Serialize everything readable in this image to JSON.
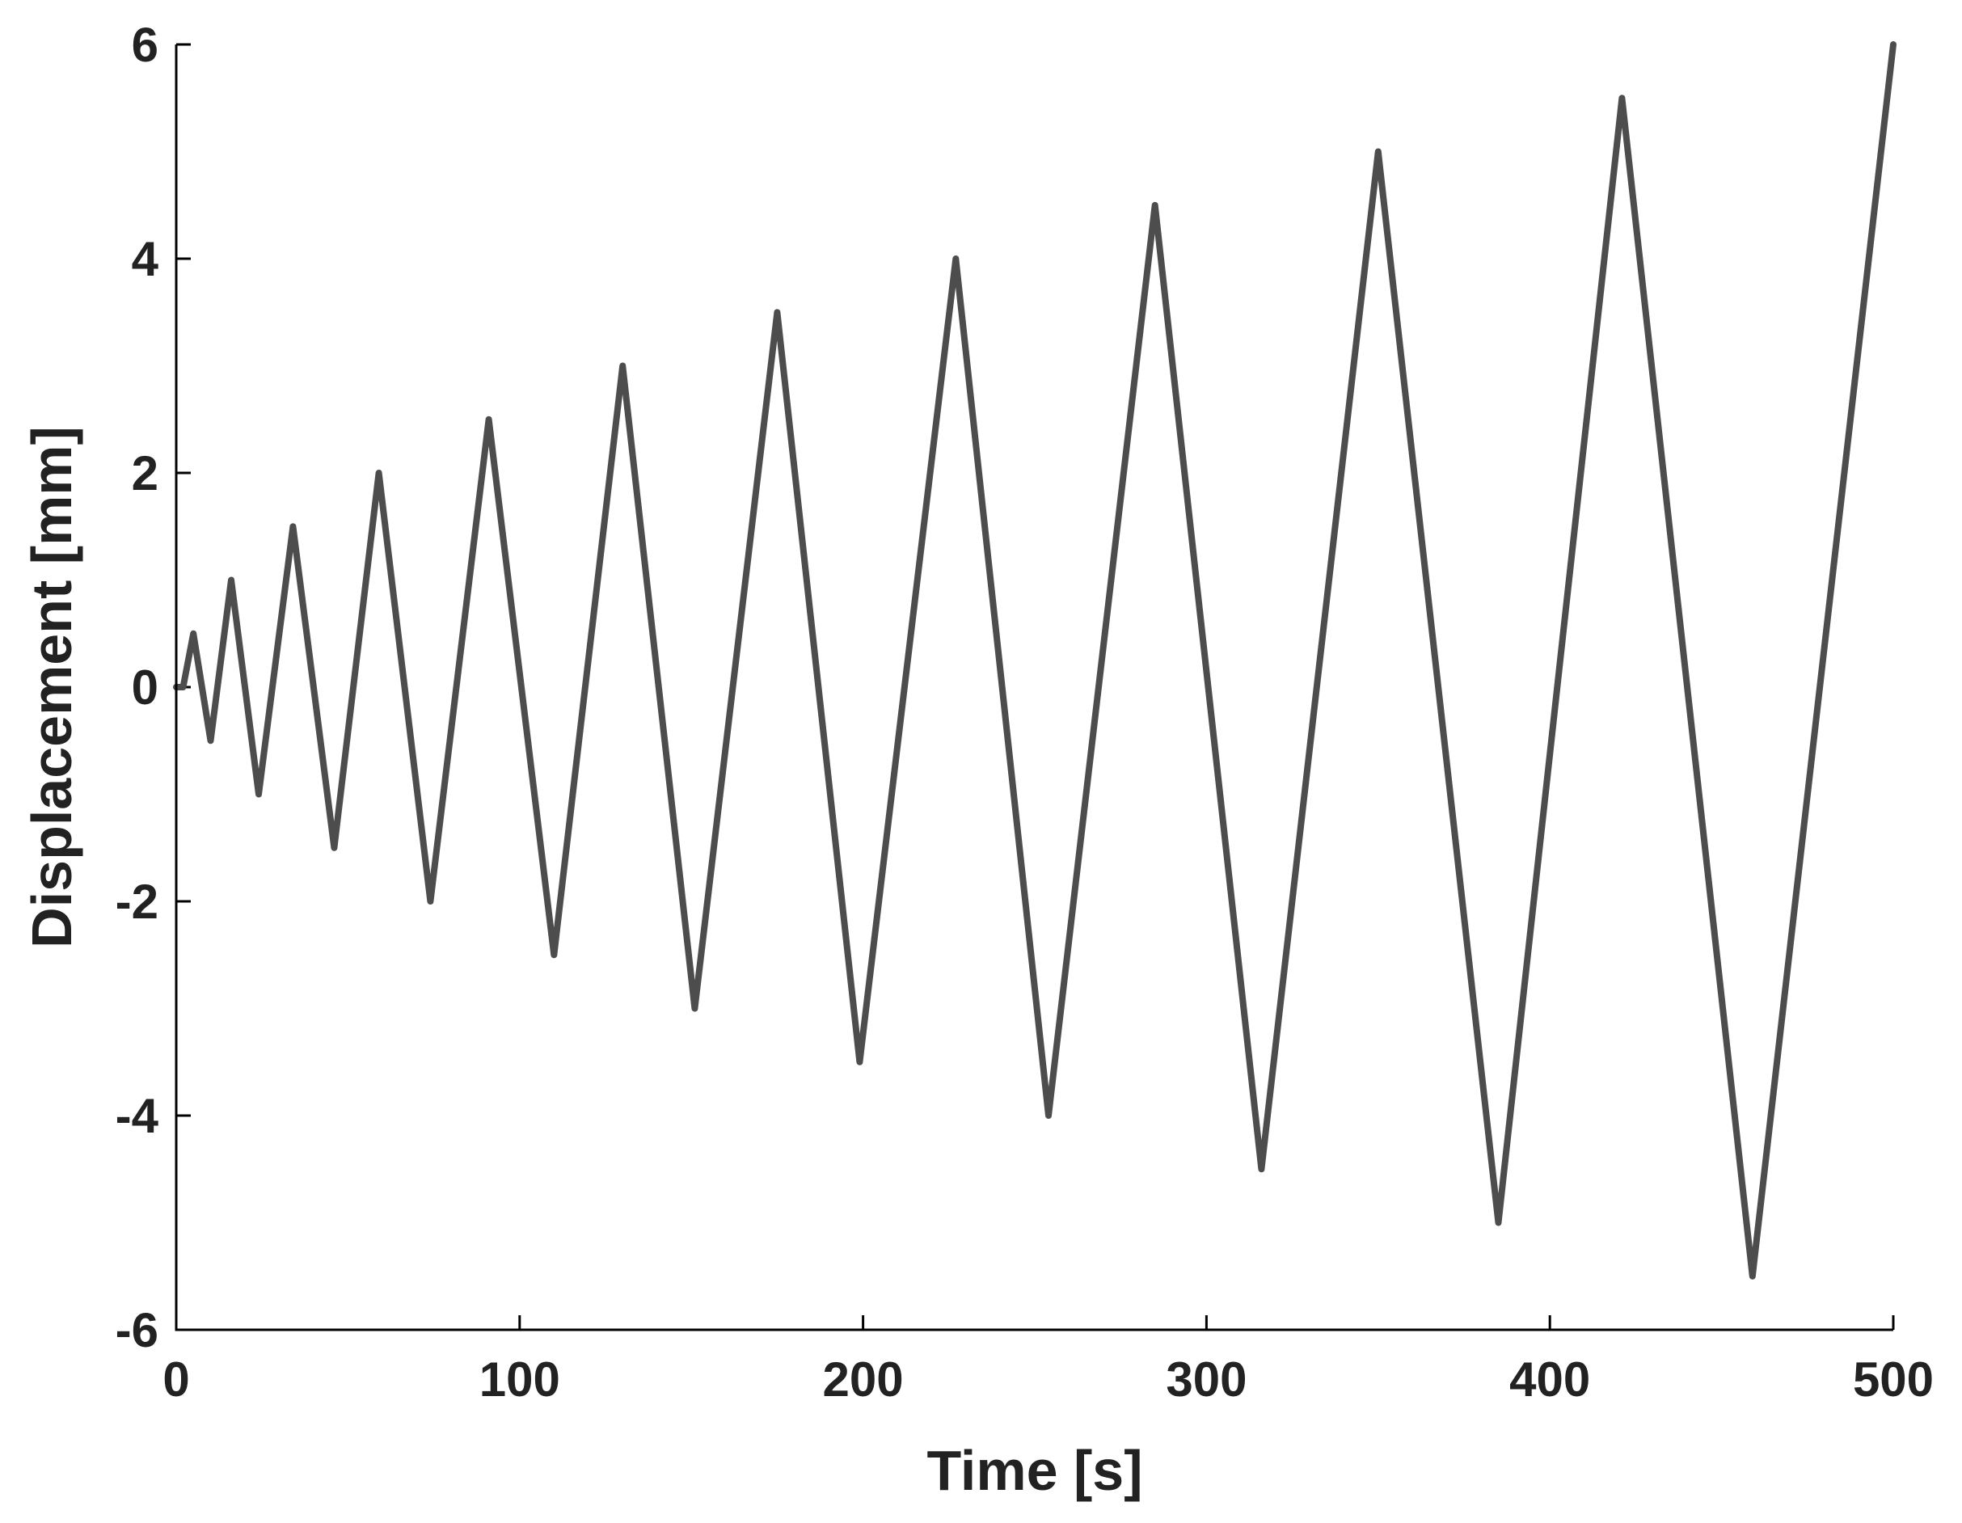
{
  "chart_data": {
    "type": "line",
    "title": "",
    "xlabel": "Time [s]",
    "ylabel": "Displacement [mm]",
    "xlim": [
      0,
      500
    ],
    "ylim": [
      -6,
      6
    ],
    "x_ticks": [
      "0",
      "100",
      "200",
      "300",
      "400",
      "500"
    ],
    "y_ticks": [
      "6",
      "4",
      "2",
      "0",
      "-2",
      "-4",
      "-6"
    ],
    "grid": false,
    "series": [
      {
        "color": "#4d4d4d",
        "x": [
          0,
          2,
          5,
          10,
          16,
          24,
          34,
          46,
          59,
          74,
          91,
          110,
          130,
          151,
          175,
          199,
          227,
          254,
          285,
          316,
          350,
          385,
          421,
          459,
          500
        ],
        "y": [
          0,
          0,
          0.5,
          -0.5,
          1.0,
          -1.0,
          1.5,
          -1.5,
          2.0,
          -2.0,
          2.5,
          -2.5,
          3.0,
          -3.0,
          3.5,
          -3.5,
          4.0,
          -4.0,
          4.5,
          -4.5,
          5.0,
          -5.0,
          5.5,
          -5.5,
          6.0
        ]
      }
    ]
  }
}
